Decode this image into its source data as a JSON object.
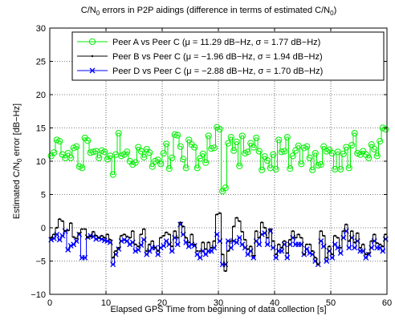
{
  "chart_data": {
    "type": "line",
    "title": {
      "before": "C/N",
      "sub": "0",
      "after": " errors in P2P aidings (difference in terms of estimated C/N",
      "sub2": "0",
      "close": ")"
    },
    "xlabel": "Elapsed GPS Time from beginning of data collection [s]",
    "ylabel": {
      "before": "Estimated C/N",
      "sub": "0",
      "after": " error [dB−Hz]"
    },
    "xlim": [
      0,
      60
    ],
    "ylim": [
      -10,
      30
    ],
    "xticks": [
      "0",
      "10",
      "20",
      "30",
      "40",
      "50",
      "60"
    ],
    "yticks": [
      "−10",
      "−5",
      "0",
      "5",
      "10",
      "15",
      "20",
      "25",
      "30"
    ],
    "grid": "dotted",
    "legend_position": "top-right",
    "x": [
      0.0,
      0.5,
      1.0,
      1.5,
      2.0,
      2.5,
      3.0,
      3.5,
      4.0,
      4.5,
      5.0,
      5.5,
      6.0,
      6.5,
      7.0,
      7.5,
      8.0,
      8.5,
      9.0,
      9.5,
      10.0,
      10.5,
      11.0,
      11.5,
      12.0,
      12.5,
      13.0,
      13.5,
      14.0,
      14.5,
      15.0,
      15.5,
      16.0,
      16.5,
      17.0,
      17.5,
      18.0,
      18.5,
      19.0,
      19.5,
      20.0,
      20.5,
      21.0,
      21.5,
      22.0,
      22.5,
      23.0,
      23.5,
      24.0,
      24.5,
      25.0,
      25.5,
      26.0,
      26.5,
      27.0,
      27.5,
      28.0,
      28.5,
      29.0,
      29.5,
      30.0,
      30.5,
      31.0,
      31.5,
      32.0,
      32.5,
      33.0,
      33.5,
      34.0,
      34.5,
      35.0,
      35.5,
      36.0,
      36.5,
      37.0,
      37.5,
      38.0,
      38.5,
      39.0,
      39.5,
      40.0,
      40.5,
      41.0,
      41.5,
      42.0,
      42.5,
      43.0,
      43.5,
      44.0,
      44.5,
      45.0,
      45.5,
      46.0,
      46.5,
      47.0,
      47.5,
      48.0,
      48.5,
      49.0,
      49.5,
      50.0,
      50.5,
      51.0,
      51.5,
      52.0,
      52.5,
      53.0,
      53.5,
      54.0,
      54.5,
      55.0,
      55.5,
      56.0,
      56.5,
      57.0,
      57.5,
      58.0,
      58.5,
      59.0,
      59.5
    ],
    "series": [
      {
        "name": "Peer A vs Peer C (μ = 11.29 dB−Hz, σ = 1.77 dB−Hz)",
        "color": "#00ee00",
        "marker": "circle",
        "values": [
          10.8,
          11.3,
          13.2,
          13.0,
          11.0,
          10.5,
          11.2,
          10.5,
          12.0,
          12.2,
          9.2,
          9.0,
          13.5,
          13.1,
          11.3,
          11.4,
          11.5,
          10.5,
          11.6,
          11.4,
          10.3,
          10.8,
          8.0,
          11.0,
          14.2,
          10.8,
          11.0,
          11.4,
          10.0,
          9.5,
          9.8,
          12.1,
          11.5,
          10.6,
          11.8,
          11.3,
          9.2,
          10.0,
          10.2,
          9.6,
          11.2,
          12.6,
          8.9,
          10.5,
          14.0,
          13.9,
          12.2,
          10.3,
          9.0,
          13.2,
          12.5,
          12.1,
          9.0,
          10.4,
          11.1,
          9.8,
          13.8,
          11.9,
          12.0,
          15.1,
          14.8,
          5.5,
          6.0,
          12.7,
          13.6,
          11.6,
          12.9,
          9.3,
          13.8,
          11.2,
          11.4,
          12.7,
          12.1,
          13.5,
          11.5,
          8.7,
          10.7,
          10.1,
          9.0,
          11.0,
          8.8,
          13.2,
          11.4,
          11.5,
          13.6,
          8.9,
          10.8,
          11.6,
          12.3,
          9.6,
          12.0,
          12.2,
          10.5,
          8.7,
          11.2,
          9.4,
          9.5,
          12.2,
          11.5,
          11.7,
          11.2,
          8.8,
          11.4,
          8.8,
          11.1,
          12.1,
          9.0,
          12.4,
          14.2,
          11.2,
          11.0,
          11.5,
          11.0,
          10.5,
          12.5,
          11.8,
          10.8,
          13.0,
          15.0,
          14.8
        ]
      },
      {
        "name": "Peer B vs Peer C (μ = −1.96 dB−Hz, σ = 1.94 dB−Hz)",
        "color": "#000000",
        "marker": "dot",
        "values": [
          -1.5,
          -1.0,
          0.0,
          1.3,
          1.0,
          -0.5,
          -0.4,
          0.7,
          -1.4,
          -1.6,
          -0.8,
          -0.2,
          -0.2,
          -1.5,
          -1.3,
          -0.6,
          -1.2,
          -1.5,
          -1.2,
          -1.5,
          -1.0,
          -1.8,
          -4.5,
          -3.5,
          -3.0,
          -1.2,
          -1.0,
          -1.3,
          -1.5,
          -0.5,
          -2.5,
          -2.8,
          -1.0,
          -0.2,
          -3.5,
          -2.5,
          -2.0,
          -3.0,
          -3.5,
          -1.5,
          -1.2,
          -0.7,
          -1.0,
          -2.8,
          -0.5,
          -1.5,
          0.8,
          0.2,
          -1.5,
          -2.2,
          -1.0,
          -2.5,
          -3.5,
          -3.5,
          -2.2,
          -3.2,
          -2.2,
          -3.0,
          -2.0,
          2.0,
          2.2,
          -4.0,
          -6.5,
          -3.5,
          -2.0,
          0.2,
          1.5,
          1.0,
          -0.6,
          -1.8,
          -3.2,
          -2.8,
          -4.2,
          -0.5,
          -1.5,
          0.8,
          0.0,
          -1.5,
          -0.2,
          -2.0,
          -4.0,
          -2.5,
          -3.0,
          -2.0,
          -3.8,
          -1.8,
          -0.5,
          -1.5,
          -1.0,
          -1.5,
          -4.0,
          -2.5,
          -2.5,
          -3.5,
          -4.5,
          -5.5,
          -0.5,
          -1.2,
          -4.5,
          -2.8,
          -4.0,
          -1.2,
          -1.5,
          -3.0,
          -0.5,
          0.5,
          -2.0,
          -0.5,
          -2.2,
          -0.8,
          -3.0,
          -2.5,
          -4.0,
          -3.8,
          -2.0,
          -1.0,
          -2.3,
          -2.5,
          -2.8,
          -1.0
        ]
      },
      {
        "name": "Peer D vs Peer C (μ = −2.88 dB−Hz, σ = 1.70 dB−Hz)",
        "color": "#0000ff",
        "marker": "x",
        "values": [
          -1.8,
          -1.6,
          -1.0,
          -1.8,
          -1.2,
          -0.5,
          -3.3,
          -2.7,
          -2.5,
          -2.0,
          -1.0,
          -4.5,
          -4.5,
          -1.4,
          -1.2,
          -1.3,
          -1.7,
          -1.5,
          -1.7,
          -1.9,
          -2.0,
          -2.2,
          -5.5,
          -4.0,
          -3.2,
          -2.0,
          -1.8,
          -2.0,
          -2.5,
          -2.2,
          -3.5,
          -3.3,
          -2.6,
          -1.8,
          -4.0,
          -3.5,
          -3.0,
          -3.0,
          -4.0,
          -3.0,
          -2.7,
          -2.0,
          -2.5,
          -3.5,
          -1.5,
          -2.5,
          0.5,
          -1.0,
          -2.2,
          -2.8,
          -2.5,
          -2.7,
          -4.0,
          -4.5,
          -3.5,
          -4.0,
          -3.5,
          -3.5,
          -3.0,
          -1.0,
          -2.0,
          -5.5,
          -5.5,
          -2.0,
          -3.0,
          -2.0,
          -2.2,
          -1.5,
          -2.5,
          -3.0,
          -4.0,
          -3.5,
          -4.5,
          -2.0,
          -2.5,
          -1.0,
          -0.8,
          -2.5,
          -0.5,
          -3.0,
          -4.5,
          -3.5,
          -3.5,
          -2.5,
          -4.5,
          -2.5,
          -1.5,
          -2.5,
          -2.5,
          -2.5,
          -4.0,
          -3.2,
          -3.8,
          -4.0,
          -5.0,
          -5.5,
          -2.0,
          -2.8,
          -5.0,
          -3.5,
          -4.5,
          -2.5,
          -3.0,
          -3.8,
          -1.5,
          -0.5,
          -3.0,
          -1.5,
          -3.0,
          -2.0,
          -3.5,
          -3.5,
          -4.5,
          -4.0,
          -3.0,
          -2.0,
          -3.0,
          -3.0,
          -3.5,
          -1.7
        ]
      }
    ]
  }
}
